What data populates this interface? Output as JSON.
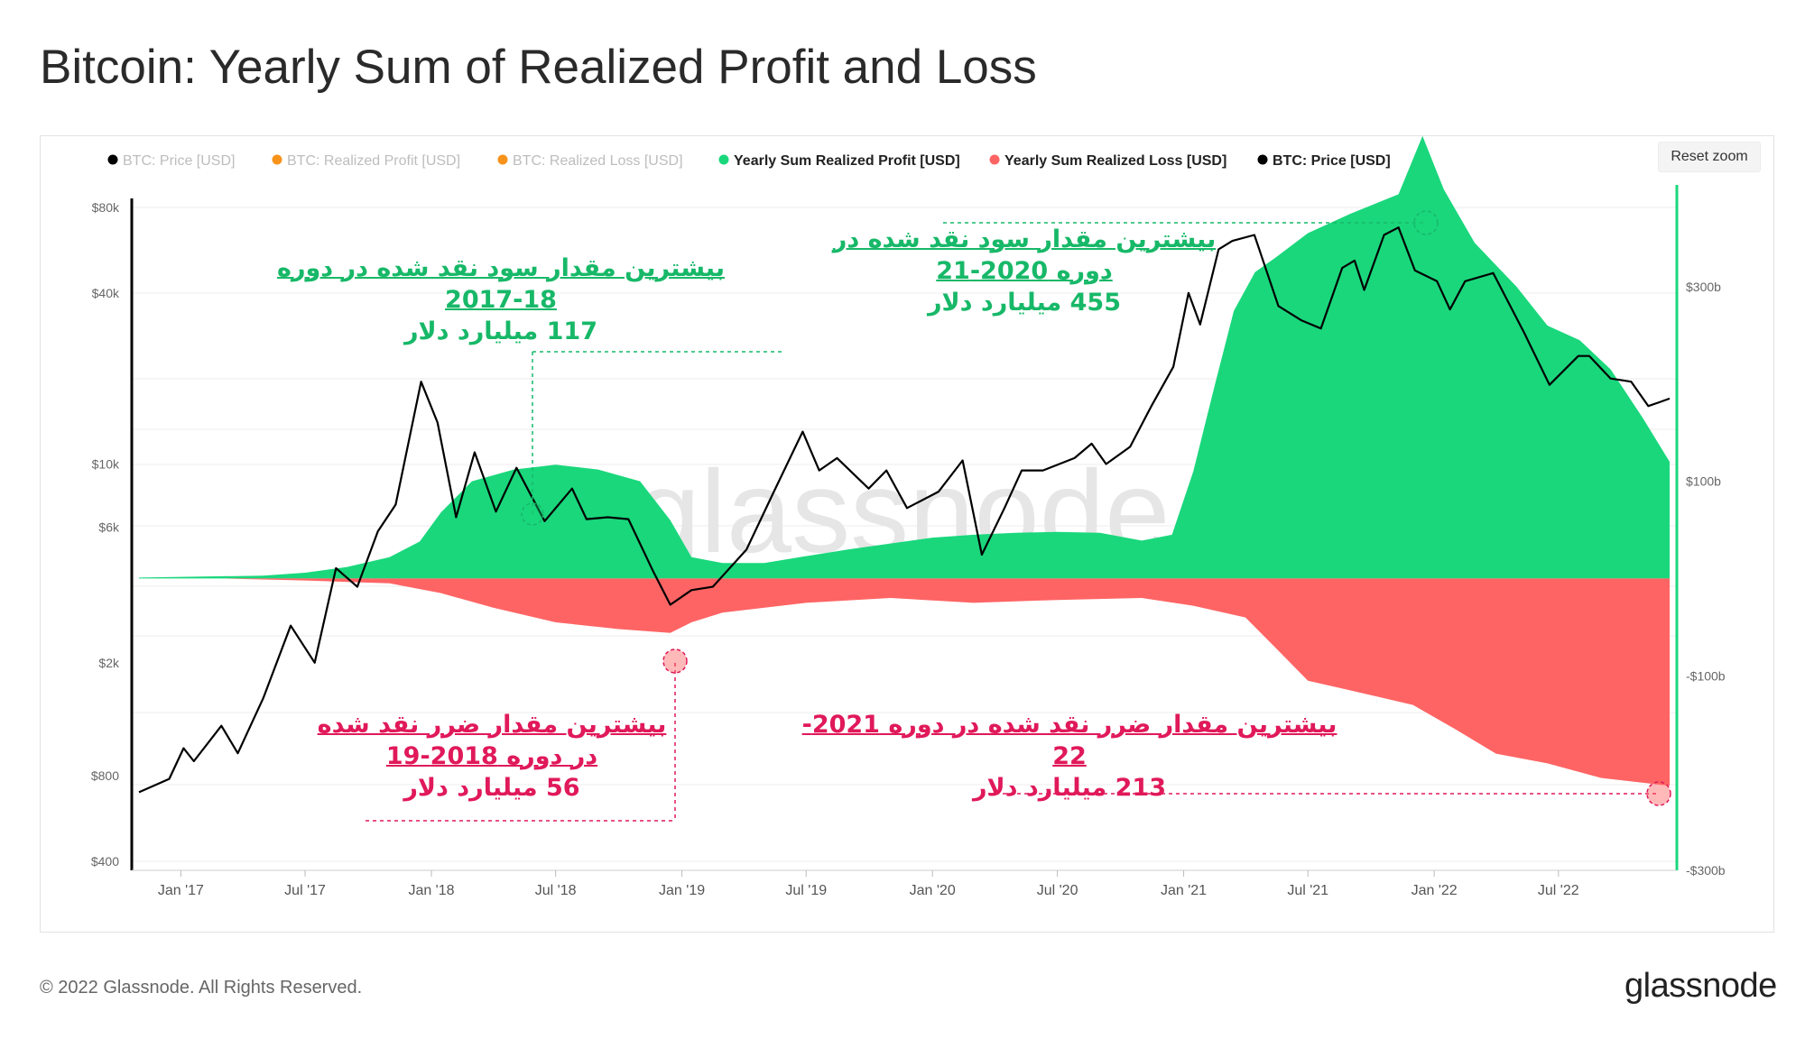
{
  "title": "Bitcoin: Yearly Sum of Realized Profit and Loss",
  "reset_zoom_label": "Reset zoom",
  "copyright": "© 2022 Glassnode. All Rights Reserved.",
  "logo": "glassnode",
  "watermark": "glassnode",
  "colors": {
    "profit": "#1ad77c",
    "loss": "#ff6464",
    "price": "#000000",
    "disabled_legend": "#bdbdbd",
    "orange": "#f7931a",
    "annotation_green": "#17b868",
    "annotation_red": "#e0195a"
  },
  "legend": [
    {
      "label": "BTC: Price [USD]",
      "color": "#000000",
      "active": false
    },
    {
      "label": "BTC: Realized Profit [USD]",
      "color": "#f7931a",
      "active": false
    },
    {
      "label": "BTC: Realized Loss [USD]",
      "color": "#f7931a",
      "active": false
    },
    {
      "label": "Yearly Sum Realized Profit [USD]",
      "color": "#1ad77c",
      "active": true
    },
    {
      "label": "Yearly Sum Realized Loss [USD]",
      "color": "#ff6464",
      "active": true
    },
    {
      "label": "BTC: Price [USD]",
      "color": "#000000",
      "active": true
    }
  ],
  "annotations": {
    "profit_2017": {
      "line1": "بیشترین مقدار سود نقد شده در دوره",
      "line2": "2017-18",
      "line3": "117 میلیارد دلار"
    },
    "profit_2020": {
      "line1": "بیشترین مقدار سود نقد شده در",
      "line2": "دوره 2020-21",
      "line3": "455 میلیارد دلار"
    },
    "loss_2018": {
      "line1": "بیشترین مقدار ضرر نقد شده",
      "line2": "در دوره 2018-19",
      "line3": "56 میلیارد دلار"
    },
    "loss_2021": {
      "line1": "بیشترین مقدار ضرر نقد شده در دوره 2021-22",
      "line2": "213 میلیارد دلار"
    }
  },
  "chart_data": {
    "type": "area",
    "title": "Bitcoin: Yearly Sum of Realized Profit and Loss",
    "x_ticks": [
      "Jan '17",
      "Jul '17",
      "Jan '18",
      "Jul '18",
      "Jan '19",
      "Jul '19",
      "Jan '20",
      "Jul '20",
      "Jan '21",
      "Jul '21",
      "Jan '22",
      "Jul '22"
    ],
    "x_range": [
      "2016-11-01",
      "2022-12-10"
    ],
    "left_axis": {
      "scale": "log",
      "ticks": [
        "$400",
        "$800",
        "$2k",
        "$6k",
        "$10k",
        "$40k",
        "$80k"
      ],
      "tick_values": [
        400,
        800,
        2000,
        6000,
        10000,
        40000,
        80000
      ]
    },
    "right_axis": {
      "scale": "linear",
      "ticks": [
        "-$300b",
        "-$100b",
        "$100b",
        "$300b"
      ],
      "tick_values": [
        -300,
        -100,
        100,
        300
      ],
      "ylim": [
        -300,
        400
      ]
    },
    "grid": true,
    "legend_position": "top",
    "series": [
      {
        "name": "Yearly Sum Realized Profit [USD]",
        "axis": "right",
        "unit": "billion USD",
        "x": [
          "2016-11-01",
          "2017-02-01",
          "2017-05-01",
          "2017-07-01",
          "2017-09-01",
          "2017-11-01",
          "2017-12-15",
          "2018-01-15",
          "2018-03-01",
          "2018-05-01",
          "2018-07-01",
          "2018-09-01",
          "2018-11-01",
          "2018-12-15",
          "2019-01-15",
          "2019-03-01",
          "2019-05-01",
          "2019-07-01",
          "2019-09-01",
          "2019-11-01",
          "2020-01-01",
          "2020-03-01",
          "2020-05-01",
          "2020-07-01",
          "2020-09-01",
          "2020-11-01",
          "2020-12-15",
          "2021-01-15",
          "2021-02-15",
          "2021-03-15",
          "2021-04-15",
          "2021-05-15",
          "2021-07-01",
          "2021-09-01",
          "2021-11-10",
          "2021-12-15",
          "2022-01-15",
          "2022-03-01",
          "2022-05-01",
          "2022-06-15",
          "2022-08-01",
          "2022-09-15",
          "2022-11-01",
          "2022-12-10"
        ],
        "values": [
          1,
          2,
          3,
          6,
          12,
          22,
          38,
          68,
          100,
          112,
          117,
          112,
          100,
          60,
          22,
          16,
          16,
          23,
          30,
          36,
          42,
          45,
          47,
          48,
          47,
          39,
          45,
          110,
          198,
          275,
          315,
          330,
          355,
          375,
          395,
          455,
          400,
          345,
          300,
          260,
          245,
          215,
          165,
          120
        ]
      },
      {
        "name": "Yearly Sum Realized Loss [USD]",
        "axis": "right",
        "unit": "billion USD",
        "x": [
          "2016-11-01",
          "2017-03-01",
          "2017-07-01",
          "2017-11-01",
          "2018-01-15",
          "2018-04-01",
          "2018-07-01",
          "2018-10-01",
          "2018-12-15",
          "2019-01-15",
          "2019-03-01",
          "2019-07-01",
          "2019-11-01",
          "2020-03-01",
          "2020-07-01",
          "2020-11-01",
          "2021-01-15",
          "2021-04-01",
          "2021-05-20",
          "2021-07-01",
          "2021-09-01",
          "2021-12-01",
          "2022-02-01",
          "2022-04-01",
          "2022-06-15",
          "2022-09-01",
          "2022-12-10"
        ],
        "values": [
          0,
          0,
          -2,
          -5,
          -15,
          -30,
          -45,
          -52,
          -56,
          -45,
          -35,
          -25,
          -20,
          -25,
          -22,
          -20,
          -28,
          -40,
          -75,
          -105,
          -115,
          -130,
          -155,
          -180,
          -190,
          -205,
          -213
        ]
      },
      {
        "name": "BTC: Price [USD]",
        "axis": "left",
        "unit": "USD",
        "x": [
          "2016-11-01",
          "2016-12-15",
          "2017-01-05",
          "2017-01-20",
          "2017-03-01",
          "2017-03-25",
          "2017-05-01",
          "2017-06-10",
          "2017-07-15",
          "2017-08-15",
          "2017-09-15",
          "2017-10-15",
          "2017-11-10",
          "2017-12-17",
          "2018-01-10",
          "2018-02-06",
          "2018-03-05",
          "2018-04-05",
          "2018-05-05",
          "2018-06-15",
          "2018-07-25",
          "2018-08-15",
          "2018-09-15",
          "2018-10-15",
          "2018-11-20",
          "2018-12-15",
          "2019-01-15",
          "2019-02-15",
          "2019-04-05",
          "2019-05-15",
          "2019-06-26",
          "2019-07-20",
          "2019-08-15",
          "2019-09-30",
          "2019-10-26",
          "2019-11-25",
          "2020-01-10",
          "2020-02-14",
          "2020-03-13",
          "2020-04-15",
          "2020-05-10",
          "2020-06-10",
          "2020-07-26",
          "2020-08-20",
          "2020-09-10",
          "2020-10-15",
          "2020-11-15",
          "2020-12-17",
          "2021-01-08",
          "2021-01-25",
          "2021-02-21",
          "2021-03-13",
          "2021-04-14",
          "2021-05-19",
          "2021-06-22",
          "2021-07-20",
          "2021-08-20",
          "2021-09-07",
          "2021-09-21",
          "2021-10-20",
          "2021-11-10",
          "2021-12-04",
          "2022-01-05",
          "2022-01-24",
          "2022-02-15",
          "2022-03-28",
          "2022-05-12",
          "2022-06-18",
          "2022-07-30",
          "2022-08-15",
          "2022-09-15",
          "2022-10-15",
          "2022-11-09",
          "2022-11-25",
          "2022-12-10"
        ],
        "values": [
          700,
          780,
          1000,
          900,
          1200,
          960,
          1500,
          2700,
          2000,
          4300,
          3700,
          5800,
          7200,
          19500,
          14000,
          6500,
          11000,
          6800,
          9700,
          6300,
          8200,
          6400,
          6500,
          6400,
          4200,
          3200,
          3600,
          3700,
          5000,
          8000,
          13000,
          9500,
          10500,
          8200,
          9500,
          7000,
          8000,
          10300,
          4800,
          7000,
          9500,
          9500,
          10500,
          11800,
          10000,
          11500,
          16000,
          22000,
          40000,
          31000,
          57000,
          61000,
          64000,
          36000,
          32000,
          30000,
          49000,
          52000,
          41000,
          64000,
          68000,
          48000,
          44000,
          35000,
          44000,
          47000,
          29000,
          19000,
          24000,
          24000,
          20000,
          19500,
          16000,
          16500,
          17000
        ]
      }
    ]
  }
}
